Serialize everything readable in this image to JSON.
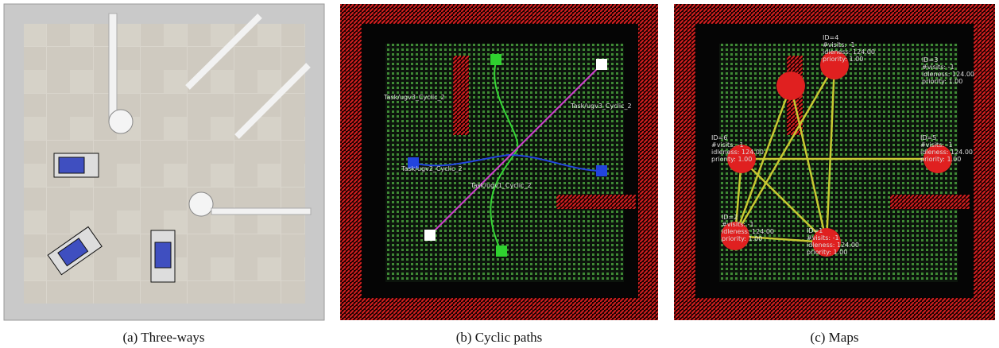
{
  "panels": [
    {
      "caption": "(a) Three-ways"
    },
    {
      "caption": "(b) Cyclic paths",
      "labels": [
        "Task/ugv3_Cyclic_2",
        "Task/ugv3_Cyclic_2",
        "Task/ugv2_Cyclic_2",
        "Task/ugv1_Cyclic_2"
      ]
    },
    {
      "caption": "(c) Maps",
      "nodes": [
        {
          "lines": [
            "ID=4",
            "#visits: -1",
            "idleness: 124.00",
            "priority: 1.00"
          ]
        },
        {
          "lines": [
            "ID=3",
            "#visits: -1",
            "idleness: 124.00",
            "priority: 1.00"
          ]
        },
        {
          "lines": [
            "ID=6",
            "#visits: -1",
            "idleness: 124.00",
            "priority: 1.00"
          ]
        },
        {
          "lines": [
            "ID=5",
            "#visits: -1",
            "idleness: 124.00",
            "priority: 1.00"
          ]
        },
        {
          "lines": [
            "ID=2",
            "#visits: -1",
            "idleness: 124.00",
            "priority: 1.00"
          ]
        },
        {
          "lines": [
            "ID=1",
            "#visits: -1",
            "idleness: 124.00",
            "priority: 1.00"
          ]
        }
      ]
    }
  ]
}
